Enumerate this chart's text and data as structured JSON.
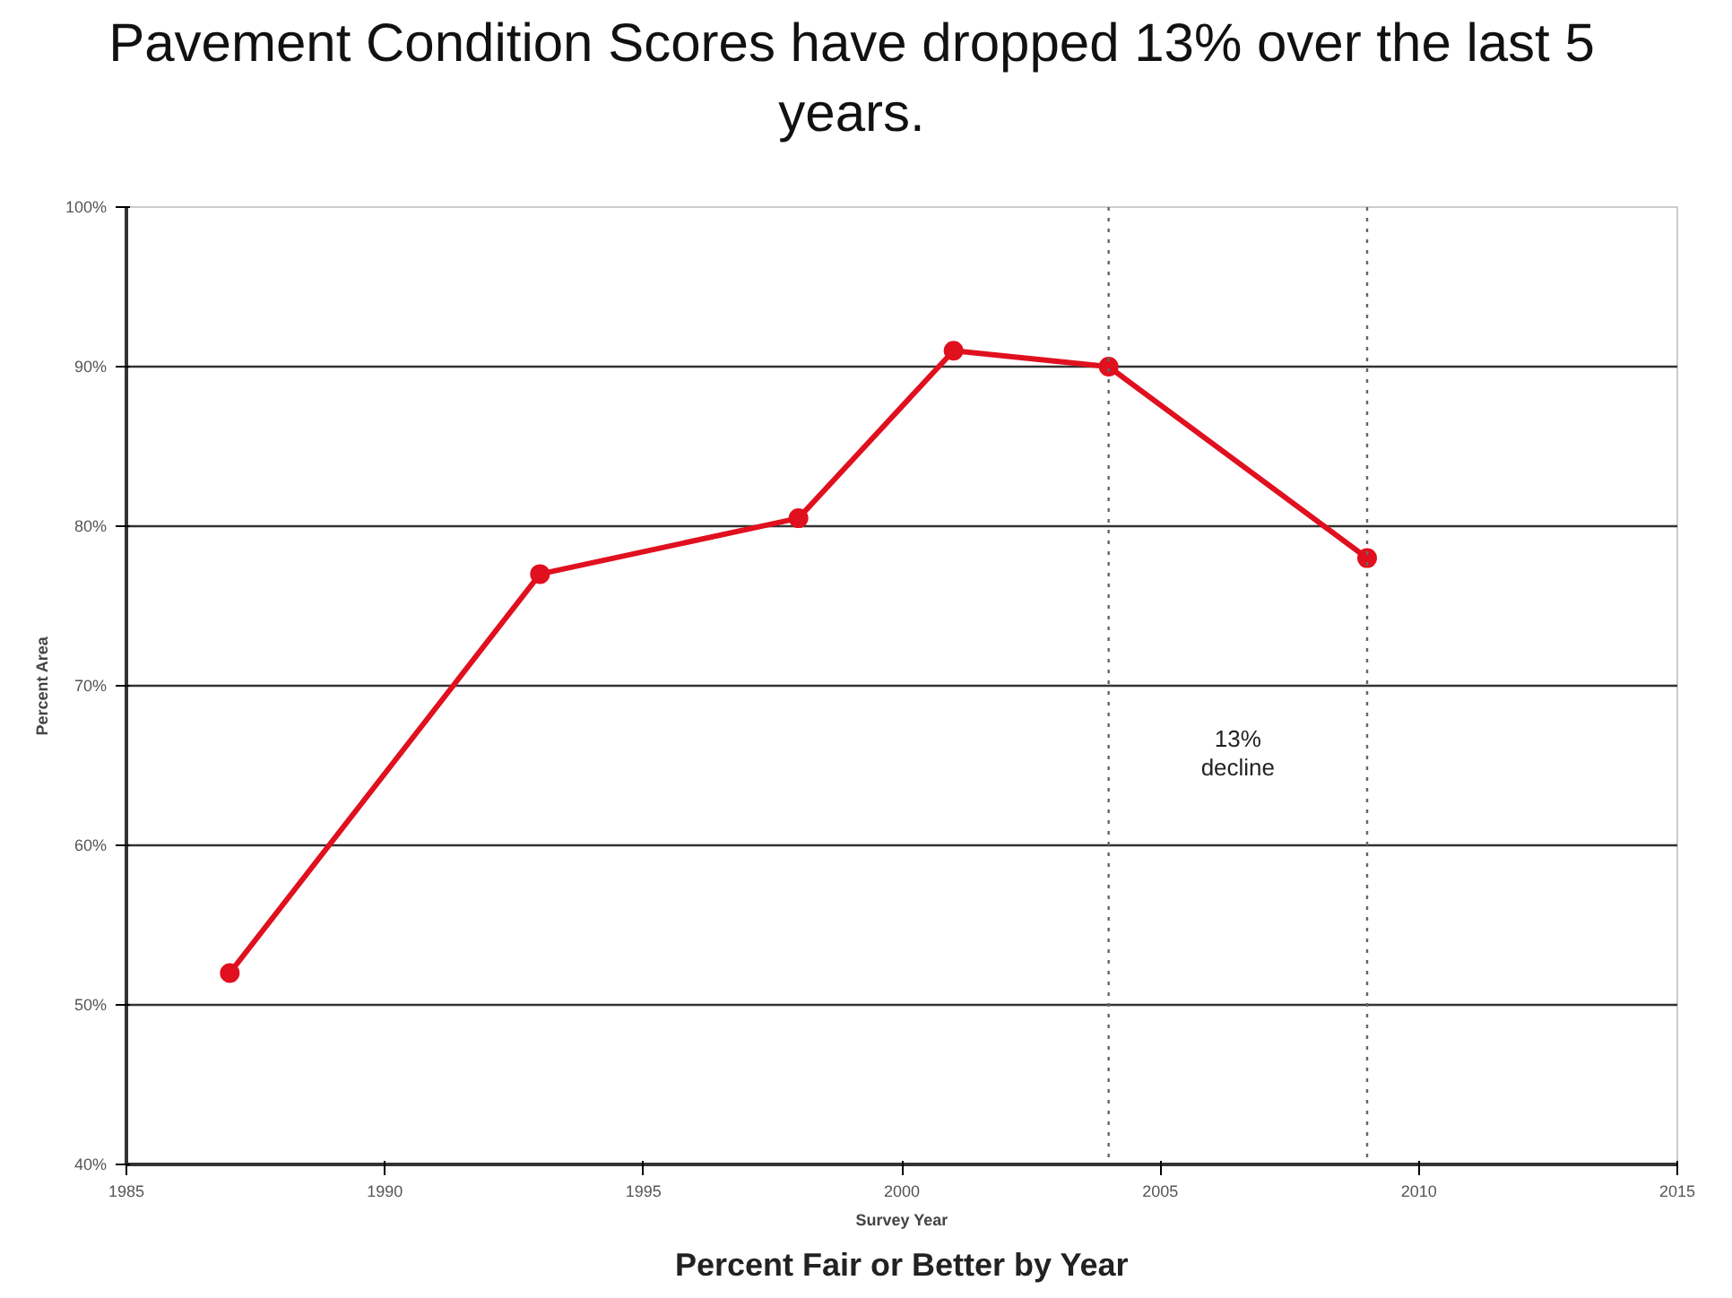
{
  "chart_data": {
    "type": "line",
    "title": "Pavement Condition Scores have dropped 13% over the last 5 years.",
    "xlabel": "Survey Year",
    "ylabel": "Percent Area",
    "x": [
      1987,
      1993,
      1998,
      2001,
      2004,
      2009
    ],
    "series": [
      {
        "color": "#e0101e",
        "values": [
          52,
          77,
          80.5,
          91,
          90,
          78
        ]
      }
    ],
    "marker": "circle",
    "line_style": "solid",
    "grid": "y",
    "xlim": [
      1985,
      2015
    ],
    "xticks": [
      1985,
      1990,
      1995,
      2000,
      2005,
      2010,
      2015
    ],
    "ylim": [
      40,
      100
    ],
    "yticks": [
      {
        "value": 40,
        "label": "40%"
      },
      {
        "value": 50,
        "label": "50%"
      },
      {
        "value": 60,
        "label": "60%"
      },
      {
        "value": 70,
        "label": "70%"
      },
      {
        "value": 80,
        "label": "80%"
      },
      {
        "value": 90,
        "label": "90%"
      },
      {
        "value": 100,
        "label": "100%"
      }
    ],
    "ref_lines": [
      {
        "axis": "x",
        "value": 2004,
        "color": "#666666",
        "line_style": "dotted"
      },
      {
        "axis": "x",
        "value": 2009,
        "color": "#666666",
        "line_style": "dotted"
      }
    ],
    "annotations": [
      "13%\ndecline",
      "Percent Fair or Better by Year"
    ]
  }
}
